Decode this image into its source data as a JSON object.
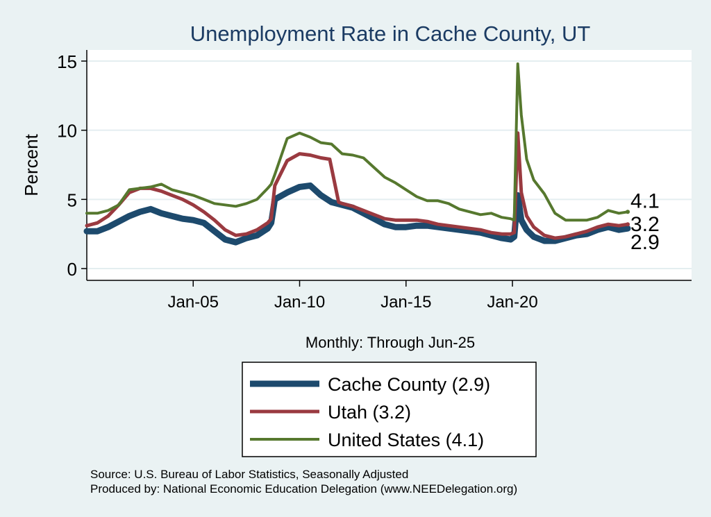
{
  "chart_data": {
    "type": "line",
    "title": "Unemployment Rate in Cache  County, UT",
    "ylabel": "Percent",
    "xlabel": "Monthly: Through Jun-25",
    "ylim": [
      0,
      15
    ],
    "xlim": [
      "2000-01",
      "2028-06"
    ],
    "grid": true,
    "y_ticks": [
      0,
      5,
      10,
      15
    ],
    "x_ticks": [
      {
        "label": "Jan-05",
        "date": "2005-01"
      },
      {
        "label": "Jan-10",
        "date": "2010-01"
      },
      {
        "label": "Jan-15",
        "date": "2015-01"
      },
      {
        "label": "Jan-20",
        "date": "2020-01"
      }
    ],
    "legend_placement": "bottom",
    "series": [
      {
        "name": "Cache  County (2.9)",
        "end_label": "2.9",
        "color": "#1d4a6d",
        "points": [
          [
            "2000-01",
            2.7
          ],
          [
            "2000-07",
            2.7
          ],
          [
            "2001-01",
            3.0
          ],
          [
            "2001-07",
            3.4
          ],
          [
            "2002-01",
            3.8
          ],
          [
            "2002-07",
            4.1
          ],
          [
            "2003-01",
            4.3
          ],
          [
            "2003-07",
            4.0
          ],
          [
            "2004-01",
            3.8
          ],
          [
            "2004-07",
            3.6
          ],
          [
            "2005-01",
            3.5
          ],
          [
            "2005-07",
            3.3
          ],
          [
            "2006-01",
            2.7
          ],
          [
            "2006-07",
            2.1
          ],
          [
            "2007-01",
            1.9
          ],
          [
            "2007-07",
            2.2
          ],
          [
            "2008-01",
            2.4
          ],
          [
            "2008-07",
            2.9
          ],
          [
            "2008-09",
            3.3
          ],
          [
            "2008-11",
            5.0
          ],
          [
            "2009-06",
            5.5
          ],
          [
            "2010-01",
            5.9
          ],
          [
            "2010-07",
            6.0
          ],
          [
            "2011-01",
            5.3
          ],
          [
            "2011-07",
            4.8
          ],
          [
            "2012-01",
            4.6
          ],
          [
            "2012-07",
            4.4
          ],
          [
            "2013-01",
            4.0
          ],
          [
            "2013-07",
            3.6
          ],
          [
            "2014-01",
            3.2
          ],
          [
            "2014-07",
            3.0
          ],
          [
            "2015-01",
            3.0
          ],
          [
            "2015-07",
            3.1
          ],
          [
            "2016-01",
            3.1
          ],
          [
            "2016-07",
            3.0
          ],
          [
            "2017-01",
            2.9
          ],
          [
            "2017-07",
            2.8
          ],
          [
            "2018-01",
            2.7
          ],
          [
            "2018-07",
            2.6
          ],
          [
            "2019-01",
            2.4
          ],
          [
            "2019-07",
            2.2
          ],
          [
            "2019-12",
            2.1
          ],
          [
            "2020-02",
            2.3
          ],
          [
            "2020-04",
            5.3
          ],
          [
            "2020-06",
            3.5
          ],
          [
            "2020-09",
            2.8
          ],
          [
            "2021-01",
            2.3
          ],
          [
            "2021-07",
            2.0
          ],
          [
            "2022-01",
            2.0
          ],
          [
            "2022-07",
            2.2
          ],
          [
            "2023-01",
            2.4
          ],
          [
            "2023-07",
            2.5
          ],
          [
            "2024-01",
            2.8
          ],
          [
            "2024-07",
            3.0
          ],
          [
            "2025-01",
            2.8
          ],
          [
            "2025-06",
            2.9
          ]
        ]
      },
      {
        "name": "Utah (3.2)",
        "end_label": "3.2",
        "color": "#9a3a40",
        "points": [
          [
            "2000-01",
            3.1
          ],
          [
            "2000-07",
            3.3
          ],
          [
            "2001-01",
            3.8
          ],
          [
            "2001-07",
            4.6
          ],
          [
            "2002-01",
            5.5
          ],
          [
            "2002-07",
            5.8
          ],
          [
            "2003-01",
            5.8
          ],
          [
            "2003-07",
            5.6
          ],
          [
            "2004-01",
            5.3
          ],
          [
            "2004-07",
            5.0
          ],
          [
            "2005-01",
            4.6
          ],
          [
            "2005-07",
            4.1
          ],
          [
            "2006-01",
            3.5
          ],
          [
            "2006-07",
            2.8
          ],
          [
            "2007-01",
            2.4
          ],
          [
            "2007-07",
            2.5
          ],
          [
            "2008-01",
            2.8
          ],
          [
            "2008-07",
            3.3
          ],
          [
            "2008-09",
            3.6
          ],
          [
            "2008-11",
            6.0
          ],
          [
            "2009-06",
            7.8
          ],
          [
            "2010-01",
            8.3
          ],
          [
            "2010-07",
            8.2
          ],
          [
            "2011-01",
            8.0
          ],
          [
            "2011-06",
            7.9
          ],
          [
            "2011-11",
            4.8
          ],
          [
            "2012-01",
            4.7
          ],
          [
            "2012-07",
            4.5
          ],
          [
            "2013-01",
            4.2
          ],
          [
            "2013-07",
            3.9
          ],
          [
            "2014-01",
            3.6
          ],
          [
            "2014-07",
            3.5
          ],
          [
            "2015-01",
            3.5
          ],
          [
            "2015-07",
            3.5
          ],
          [
            "2016-01",
            3.4
          ],
          [
            "2016-07",
            3.2
          ],
          [
            "2017-01",
            3.1
          ],
          [
            "2017-07",
            3.0
          ],
          [
            "2018-01",
            2.9
          ],
          [
            "2018-07",
            2.8
          ],
          [
            "2019-01",
            2.6
          ],
          [
            "2019-07",
            2.5
          ],
          [
            "2019-12",
            2.5
          ],
          [
            "2020-02",
            2.6
          ],
          [
            "2020-04",
            9.8
          ],
          [
            "2020-06",
            5.5
          ],
          [
            "2020-09",
            3.8
          ],
          [
            "2021-01",
            3.0
          ],
          [
            "2021-07",
            2.4
          ],
          [
            "2022-01",
            2.2
          ],
          [
            "2022-07",
            2.3
          ],
          [
            "2023-01",
            2.5
          ],
          [
            "2023-07",
            2.7
          ],
          [
            "2024-01",
            3.0
          ],
          [
            "2024-07",
            3.2
          ],
          [
            "2025-01",
            3.1
          ],
          [
            "2025-06",
            3.2
          ]
        ]
      },
      {
        "name": "United States (4.1)",
        "end_label": "4.1",
        "color": "#56782e",
        "points": [
          [
            "2000-01",
            4.0
          ],
          [
            "2000-07",
            4.0
          ],
          [
            "2001-01",
            4.2
          ],
          [
            "2001-07",
            4.6
          ],
          [
            "2002-01",
            5.7
          ],
          [
            "2002-07",
            5.8
          ],
          [
            "2003-01",
            5.9
          ],
          [
            "2003-07",
            6.1
          ],
          [
            "2004-01",
            5.7
          ],
          [
            "2004-07",
            5.5
          ],
          [
            "2005-01",
            5.3
          ],
          [
            "2005-07",
            5.0
          ],
          [
            "2006-01",
            4.7
          ],
          [
            "2006-07",
            4.6
          ],
          [
            "2007-01",
            4.5
          ],
          [
            "2007-07",
            4.7
          ],
          [
            "2008-01",
            5.0
          ],
          [
            "2008-07",
            5.8
          ],
          [
            "2008-09",
            6.1
          ],
          [
            "2008-11",
            6.8
          ],
          [
            "2009-06",
            9.4
          ],
          [
            "2010-01",
            9.8
          ],
          [
            "2010-07",
            9.5
          ],
          [
            "2011-01",
            9.1
          ],
          [
            "2011-07",
            9.0
          ],
          [
            "2012-01",
            8.3
          ],
          [
            "2012-07",
            8.2
          ],
          [
            "2013-01",
            8.0
          ],
          [
            "2013-07",
            7.3
          ],
          [
            "2014-01",
            6.6
          ],
          [
            "2014-07",
            6.2
          ],
          [
            "2015-01",
            5.7
          ],
          [
            "2015-07",
            5.2
          ],
          [
            "2016-01",
            4.9
          ],
          [
            "2016-07",
            4.9
          ],
          [
            "2017-01",
            4.7
          ],
          [
            "2017-07",
            4.3
          ],
          [
            "2018-01",
            4.1
          ],
          [
            "2018-07",
            3.9
          ],
          [
            "2019-01",
            4.0
          ],
          [
            "2019-07",
            3.7
          ],
          [
            "2019-12",
            3.6
          ],
          [
            "2020-02",
            3.5
          ],
          [
            "2020-04",
            14.8
          ],
          [
            "2020-06",
            11.1
          ],
          [
            "2020-09",
            7.9
          ],
          [
            "2021-01",
            6.4
          ],
          [
            "2021-07",
            5.4
          ],
          [
            "2022-01",
            4.0
          ],
          [
            "2022-07",
            3.5
          ],
          [
            "2023-01",
            3.5
          ],
          [
            "2023-07",
            3.5
          ],
          [
            "2024-01",
            3.7
          ],
          [
            "2024-07",
            4.2
          ],
          [
            "2025-01",
            4.0
          ],
          [
            "2025-06",
            4.1
          ]
        ]
      }
    ]
  },
  "footer": {
    "source": "Source: U.S. Bureau of Labor Statistics, Seasonally Adjusted",
    "produced": "Produced by: National Economic Education Delegation (www.NEEDelegation.org)"
  }
}
